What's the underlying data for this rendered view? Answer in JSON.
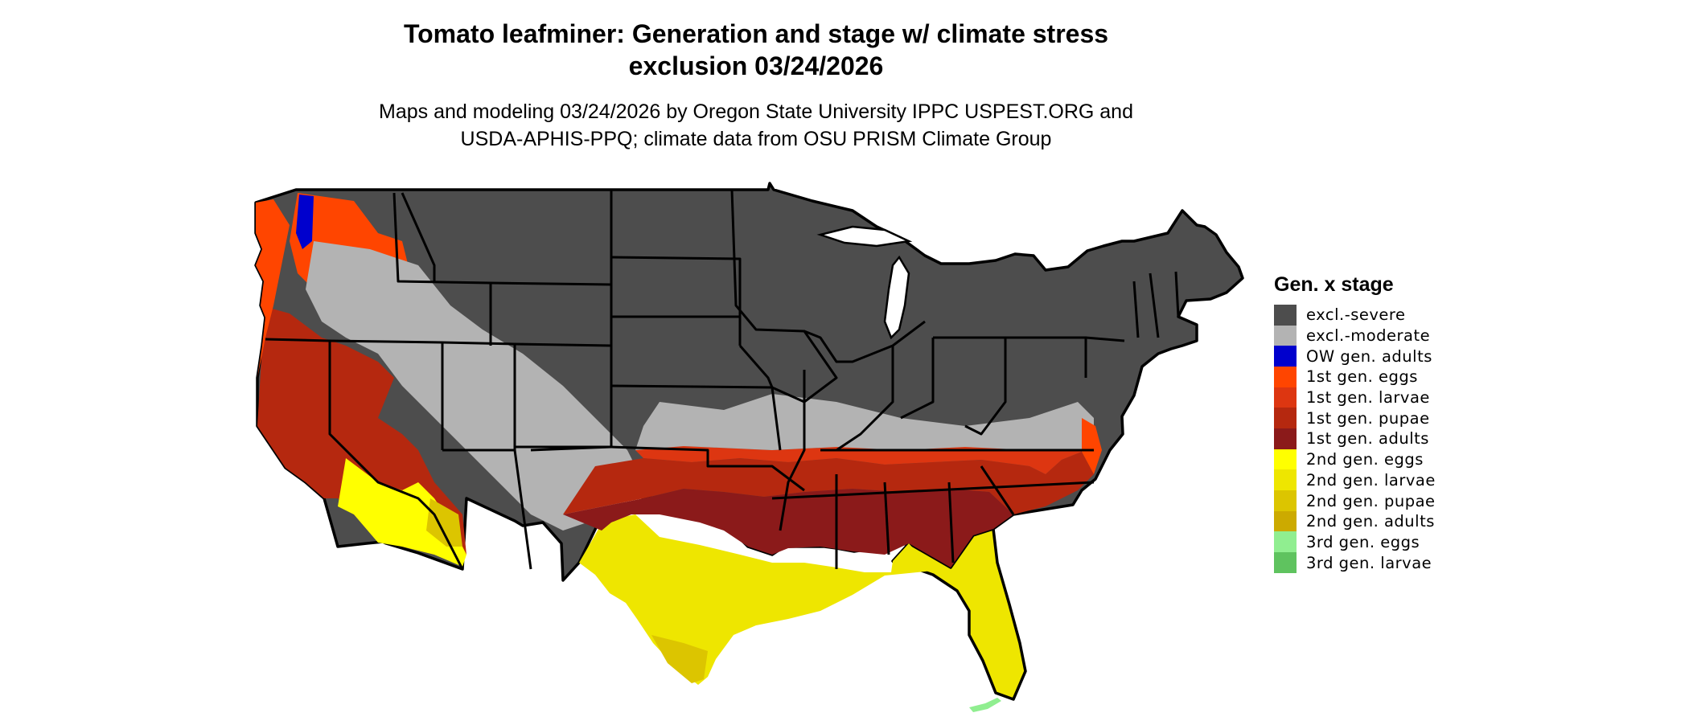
{
  "title": {
    "line1": "Tomato leafminer: Generation and stage w/ climate stress",
    "line2": "exclusion 03/24/2026"
  },
  "subtitle": {
    "line1": "Maps and modeling 03/24/2026 by Oregon State University IPPC USPEST.ORG and",
    "line2": "USDA-APHIS-PPQ; climate data from OSU PRISM Climate Group"
  },
  "legend": {
    "title": "Gen. x stage",
    "items": [
      {
        "label": "excl.-severe",
        "color": "#4d4d4d"
      },
      {
        "label": "excl.-moderate",
        "color": "#b3b3b3"
      },
      {
        "label": "OW gen. adults",
        "color": "#0000cd"
      },
      {
        "label": "1st gen. eggs",
        "color": "#ff4500"
      },
      {
        "label": "1st gen. larvae",
        "color": "#dd3611"
      },
      {
        "label": "1st gen. pupae",
        "color": "#b5280f"
      },
      {
        "label": "1st gen. adults",
        "color": "#8b1a1a"
      },
      {
        "label": "2nd gen. eggs",
        "color": "#ffff00"
      },
      {
        "label": "2nd gen. larvae",
        "color": "#eee600"
      },
      {
        "label": "2nd gen. pupae",
        "color": "#dcc500"
      },
      {
        "label": "2nd gen. adults",
        "color": "#ccaa00"
      },
      {
        "label": "3rd gen. eggs",
        "color": "#90ee90"
      },
      {
        "label": "3rd gen. larvae",
        "color": "#5fc35f"
      }
    ]
  }
}
